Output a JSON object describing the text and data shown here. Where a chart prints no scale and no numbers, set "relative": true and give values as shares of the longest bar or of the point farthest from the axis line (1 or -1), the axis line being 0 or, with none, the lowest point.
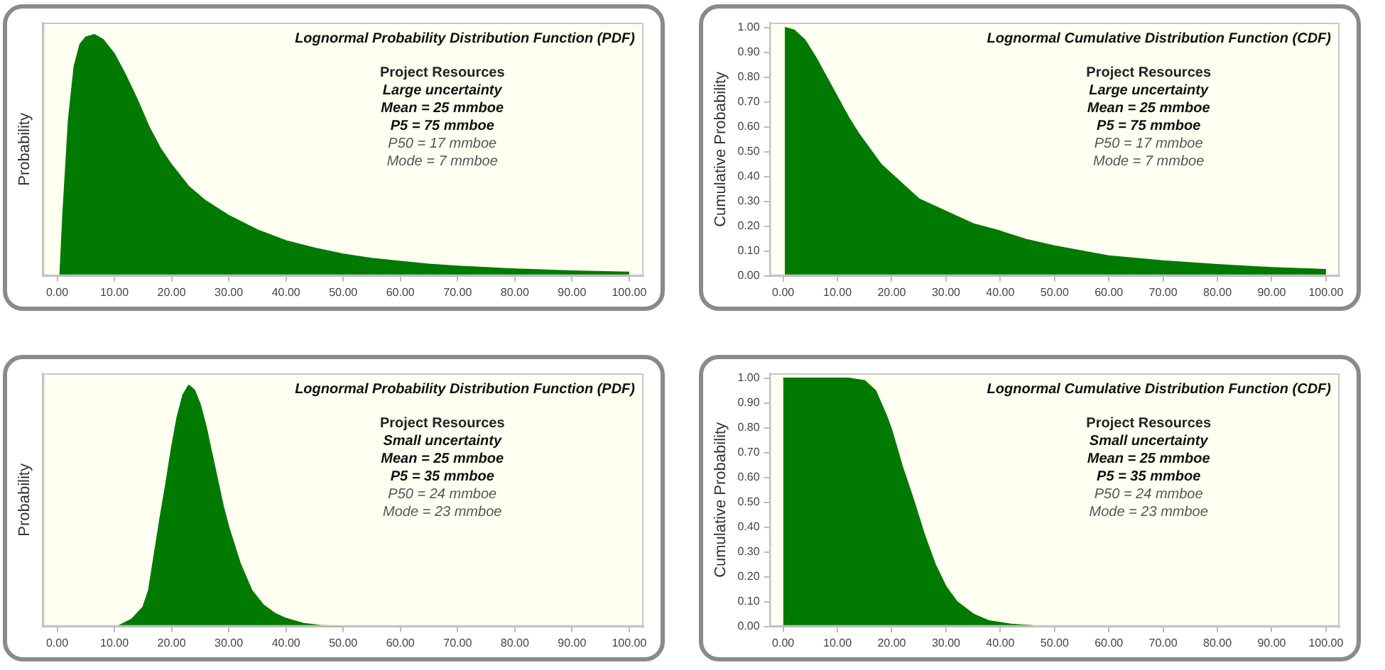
{
  "chart_data": [
    {
      "type": "area",
      "title": "Lognormal Probability Distribution Function (PDF)",
      "ylabel": "Probability",
      "relative": true,
      "tick_labels": "x",
      "grid": false,
      "legend": false,
      "marker": "none",
      "annotations": [
        "Project Resources",
        "Large uncertainty",
        "Mean = 25 mmboe",
        "P5 = 75 mmboe",
        "P50 = 17 mmboe",
        "Mode = 7 mmboe"
      ],
      "xlim": [
        -2.5,
        102.5
      ],
      "xticks": [
        {
          "value": 0,
          "label": "0.00"
        },
        {
          "value": 10,
          "label": "10.00"
        },
        {
          "value": 20,
          "label": "20.00"
        },
        {
          "value": 30,
          "label": "30.00"
        },
        {
          "value": 40,
          "label": "40.00"
        },
        {
          "value": 50,
          "label": "50.00"
        },
        {
          "value": 60,
          "label": "60.00"
        },
        {
          "value": 70,
          "label": "70.00"
        },
        {
          "value": 80,
          "label": "80.00"
        },
        {
          "value": 90,
          "label": "90.00"
        },
        {
          "value": 100,
          "label": "100.00"
        }
      ],
      "series": [
        {
          "color": "#007a00",
          "x": [
            0.5,
            1,
            2,
            3,
            4,
            5,
            6.5,
            8,
            10,
            12,
            14,
            16,
            18,
            20,
            23,
            26,
            30,
            35,
            40,
            45,
            50,
            55,
            60,
            65,
            70,
            80,
            90,
            100
          ],
          "values": [
            0,
            0.25,
            0.65,
            0.87,
            0.96,
            0.99,
            1,
            0.98,
            0.92,
            0.83,
            0.73,
            0.62,
            0.53,
            0.46,
            0.37,
            0.31,
            0.25,
            0.19,
            0.145,
            0.115,
            0.09,
            0.072,
            0.06,
            0.048,
            0.04,
            0.028,
            0.02,
            0.015
          ]
        }
      ]
    },
    {
      "type": "area",
      "title": "Lognormal Cumulative Distribution Function (CDF)",
      "ylabel": "Cumulative Probability",
      "grid": false,
      "legend": false,
      "marker": "none",
      "annotations": [
        "Project Resources",
        "Large uncertainty",
        "Mean = 25 mmboe",
        "P5 = 75 mmboe",
        "P50 = 17 mmboe",
        "Mode = 7 mmboe"
      ],
      "xlim": [
        -2.5,
        102.5
      ],
      "xticks": [
        {
          "value": 0,
          "label": "0.00"
        },
        {
          "value": 10,
          "label": "10.00"
        },
        {
          "value": 20,
          "label": "20.00"
        },
        {
          "value": 30,
          "label": "30.00"
        },
        {
          "value": 40,
          "label": "40.00"
        },
        {
          "value": 50,
          "label": "50.00"
        },
        {
          "value": 60,
          "label": "60.00"
        },
        {
          "value": 70,
          "label": "70.00"
        },
        {
          "value": 80,
          "label": "80.00"
        },
        {
          "value": 90,
          "label": "90.00"
        },
        {
          "value": 100,
          "label": "100.00"
        }
      ],
      "ylim": [
        0,
        1.02
      ],
      "yticks": [
        {
          "value": 0,
          "label": "0.00"
        },
        {
          "value": 0.1,
          "label": "0.10"
        },
        {
          "value": 0.2,
          "label": "0.20"
        },
        {
          "value": 0.3,
          "label": "0.30"
        },
        {
          "value": 0.4,
          "label": "0.40"
        },
        {
          "value": 0.5,
          "label": "0.50"
        },
        {
          "value": 0.6,
          "label": "0.60"
        },
        {
          "value": 0.7,
          "label": "0.70"
        },
        {
          "value": 0.8,
          "label": "0.80"
        },
        {
          "value": 0.9,
          "label": "0.90"
        },
        {
          "value": 1,
          "label": "1.00"
        }
      ],
      "series": [
        {
          "color": "#007a00",
          "x": [
            0.3,
            2,
            4,
            6,
            8,
            10,
            12,
            14,
            16,
            18,
            20,
            22,
            25,
            28,
            30,
            35,
            40,
            45,
            50,
            55,
            60,
            70,
            80,
            90,
            100
          ],
          "values": [
            1,
            0.99,
            0.95,
            0.88,
            0.8,
            0.72,
            0.64,
            0.57,
            0.51,
            0.45,
            0.41,
            0.37,
            0.31,
            0.28,
            0.26,
            0.21,
            0.18,
            0.145,
            0.12,
            0.1,
            0.08,
            0.06,
            0.045,
            0.033,
            0.025
          ]
        }
      ]
    },
    {
      "type": "area",
      "title": "Lognormal Probability Distribution Function (PDF)",
      "ylabel": "Probability",
      "relative": true,
      "tick_labels": "x",
      "grid": false,
      "legend": false,
      "marker": "none",
      "annotations": [
        "Project Resources",
        "Small uncertainty",
        "Mean = 25 mmboe",
        "P5 = 35 mmboe",
        "P50 = 24 mmboe",
        "Mode = 23 mmboe"
      ],
      "xlim": [
        -2.5,
        102.5
      ],
      "xticks": [
        {
          "value": 0,
          "label": "0.00"
        },
        {
          "value": 10,
          "label": "10.00"
        },
        {
          "value": 20,
          "label": "20.00"
        },
        {
          "value": 30,
          "label": "30.00"
        },
        {
          "value": 40,
          "label": "40.00"
        },
        {
          "value": 50,
          "label": "50.00"
        },
        {
          "value": 60,
          "label": "60.00"
        },
        {
          "value": 70,
          "label": "70.00"
        },
        {
          "value": 80,
          "label": "80.00"
        },
        {
          "value": 90,
          "label": "90.00"
        },
        {
          "value": 100,
          "label": "100.00"
        }
      ],
      "series": [
        {
          "color": "#007a00",
          "x": [
            10.5,
            13,
            15,
            16,
            17,
            18,
            19,
            20,
            21,
            22,
            23,
            24,
            25,
            26,
            27,
            28,
            29,
            30,
            32,
            34,
            36,
            38,
            40,
            43,
            46,
            50
          ],
          "values": [
            0,
            0.03,
            0.08,
            0.15,
            0.3,
            0.45,
            0.59,
            0.74,
            0.87,
            0.96,
            1,
            0.98,
            0.92,
            0.83,
            0.72,
            0.61,
            0.5,
            0.41,
            0.26,
            0.15,
            0.09,
            0.055,
            0.033,
            0.013,
            0.004,
            0
          ]
        }
      ]
    },
    {
      "type": "area",
      "title": "Lognormal Cumulative Distribution Function (CDF)",
      "ylabel": "Cumulative Probability",
      "grid": false,
      "legend": false,
      "marker": "none",
      "annotations": [
        "Project Resources",
        "Small uncertainty",
        "Mean = 25 mmboe",
        "P5 = 35 mmboe",
        "P50 = 24 mmboe",
        "Mode = 23 mmboe"
      ],
      "xlim": [
        -2.5,
        102.5
      ],
      "xticks": [
        {
          "value": 0,
          "label": "0.00"
        },
        {
          "value": 10,
          "label": "10.00"
        },
        {
          "value": 20,
          "label": "20.00"
        },
        {
          "value": 30,
          "label": "30.00"
        },
        {
          "value": 40,
          "label": "40.00"
        },
        {
          "value": 50,
          "label": "50.00"
        },
        {
          "value": 60,
          "label": "60.00"
        },
        {
          "value": 70,
          "label": "70.00"
        },
        {
          "value": 80,
          "label": "80.00"
        },
        {
          "value": 90,
          "label": "90.00"
        },
        {
          "value": 100,
          "label": "100.00"
        }
      ],
      "ylim": [
        0,
        1.02
      ],
      "yticks": [
        {
          "value": 0,
          "label": "0.00"
        },
        {
          "value": 0.1,
          "label": "0.10"
        },
        {
          "value": 0.2,
          "label": "0.20"
        },
        {
          "value": 0.3,
          "label": "0.30"
        },
        {
          "value": 0.4,
          "label": "0.40"
        },
        {
          "value": 0.5,
          "label": "0.50"
        },
        {
          "value": 0.6,
          "label": "0.60"
        },
        {
          "value": 0.7,
          "label": "0.70"
        },
        {
          "value": 0.8,
          "label": "0.80"
        },
        {
          "value": 0.9,
          "label": "0.90"
        },
        {
          "value": 1,
          "label": "1.00"
        }
      ],
      "series": [
        {
          "color": "#007a00",
          "x": [
            0,
            12,
            15,
            17,
            19,
            20,
            22,
            24,
            26,
            28,
            30,
            32,
            35,
            38,
            42,
            46
          ],
          "values": [
            1,
            1,
            0.99,
            0.95,
            0.85,
            0.79,
            0.64,
            0.51,
            0.37,
            0.25,
            0.16,
            0.1,
            0.05,
            0.022,
            0.009,
            0.003
          ]
        }
      ]
    }
  ]
}
